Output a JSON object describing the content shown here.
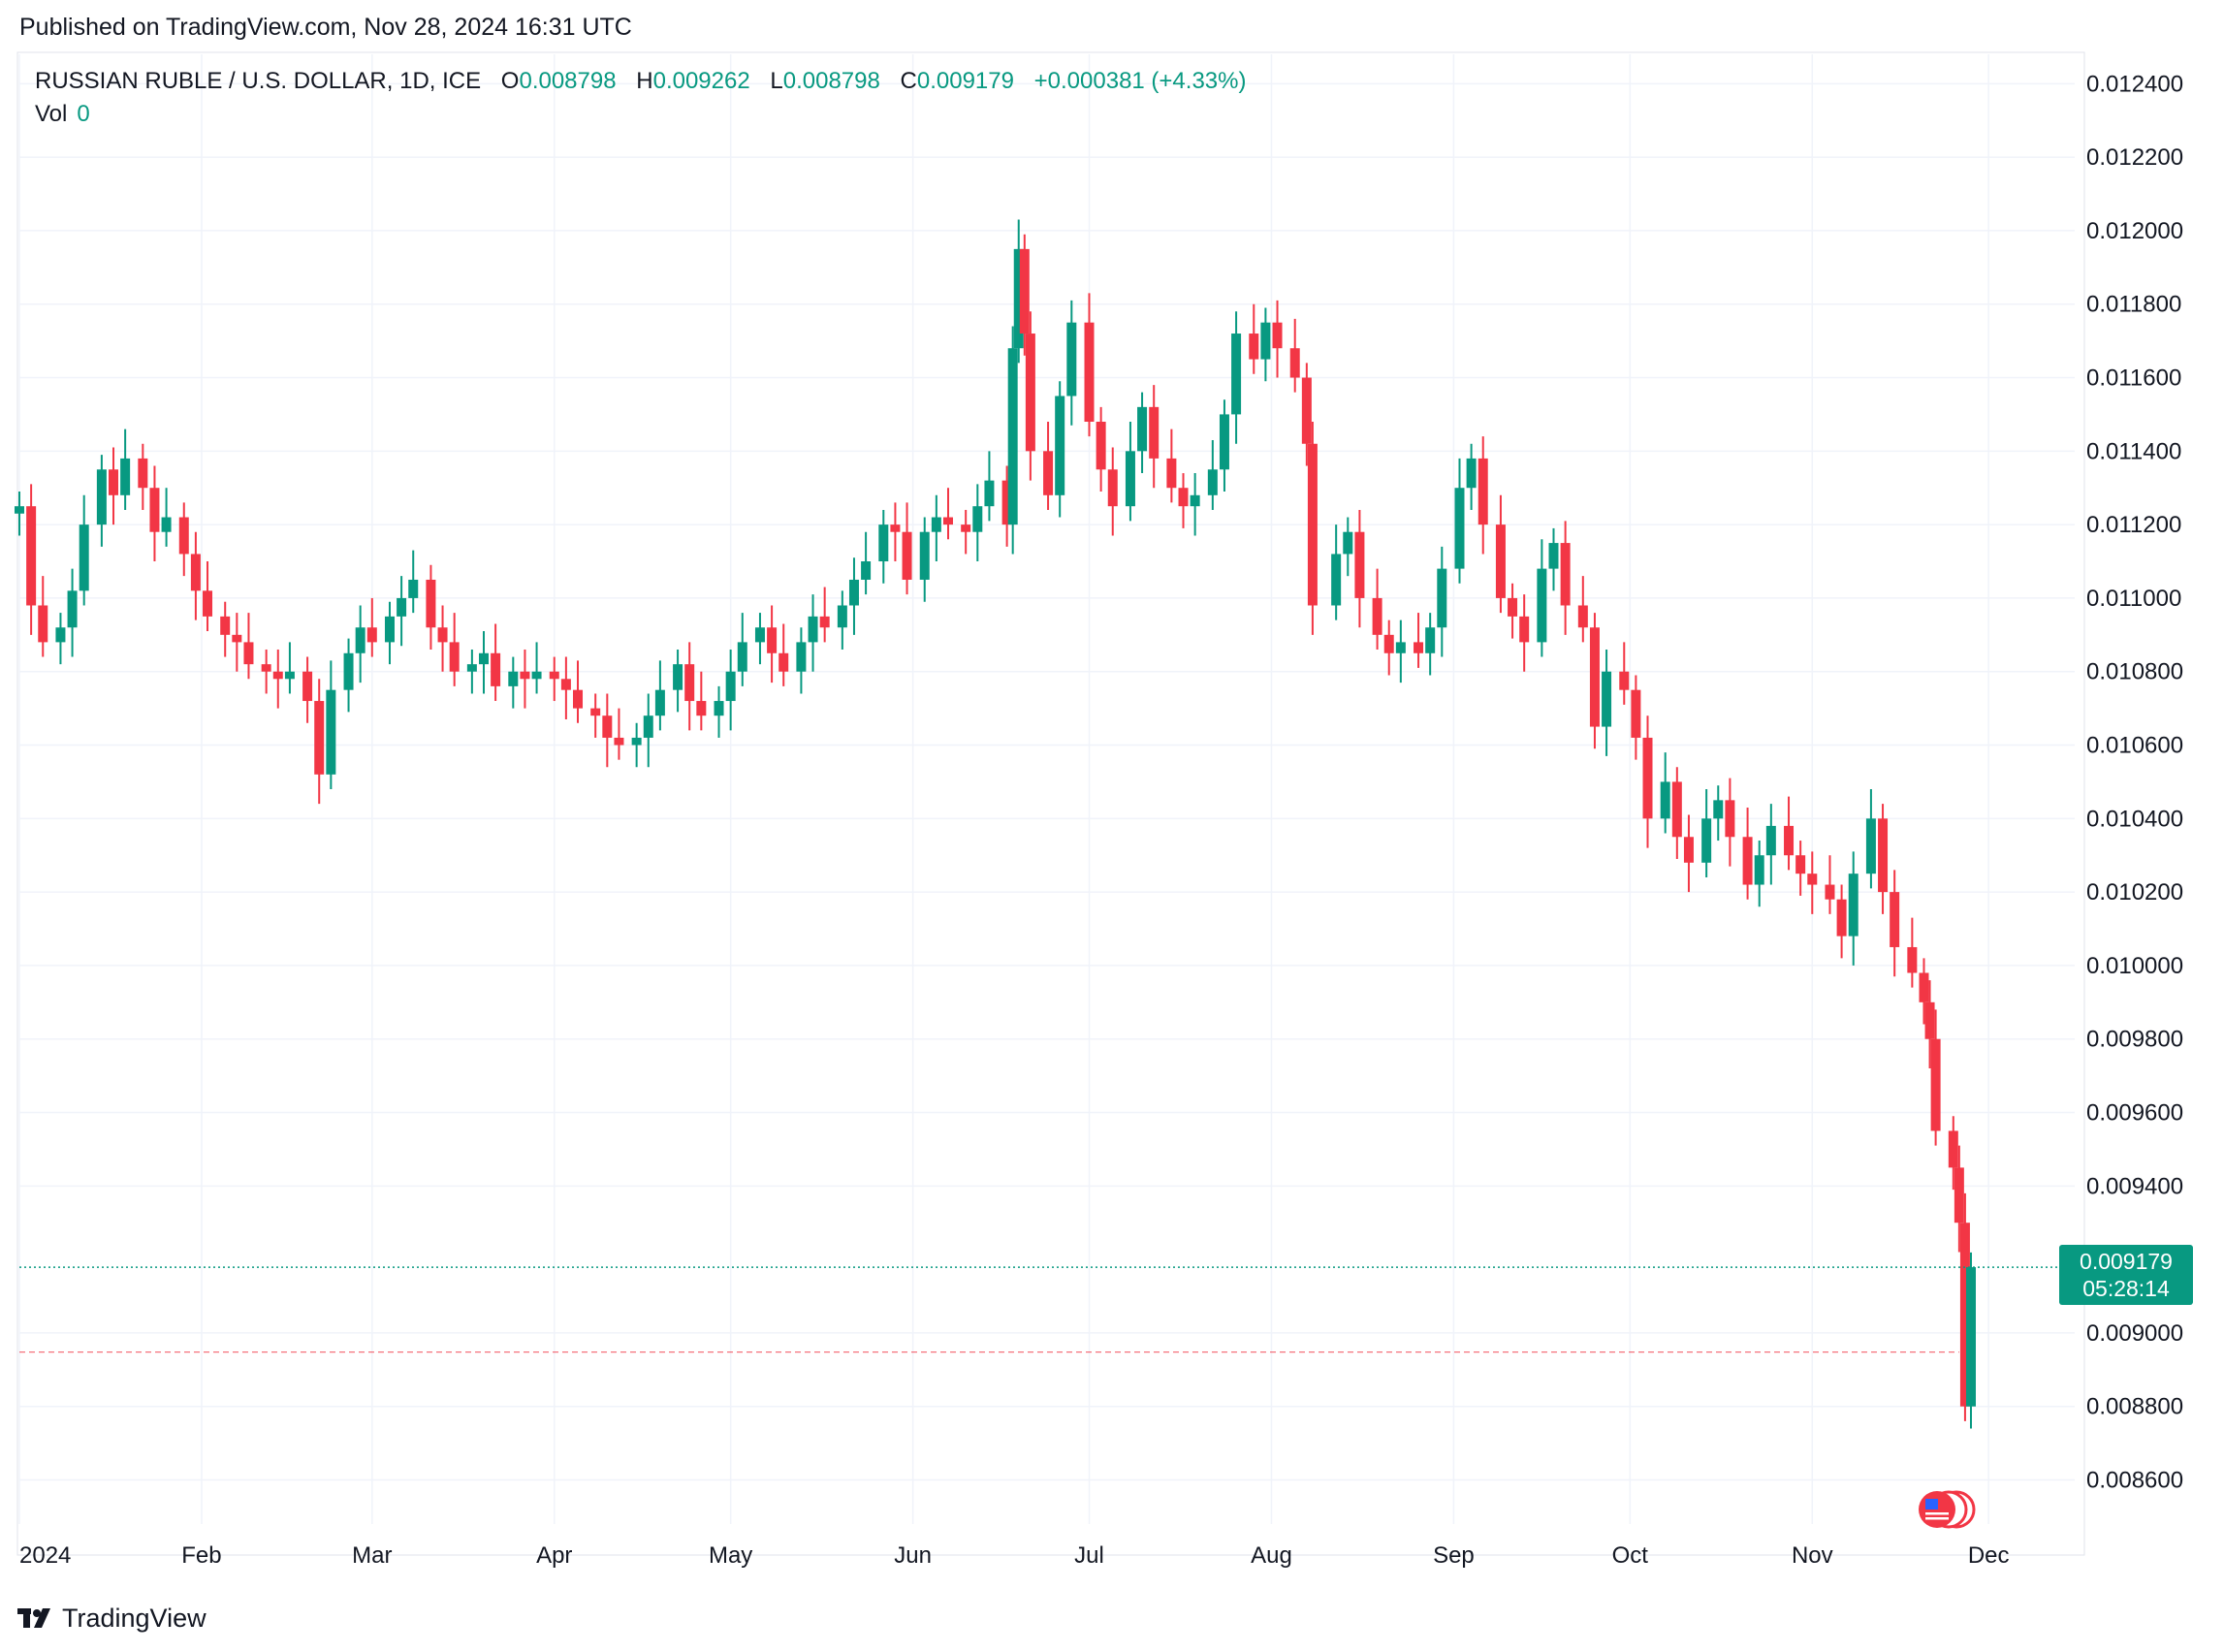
{
  "published": "Published on TradingView.com, Nov 28, 2024 16:31 UTC",
  "header": {
    "symbol": "RUSSIAN RUBLE / U.S. DOLLAR, 1D, ICE",
    "open_label": "O",
    "open": "0.008798",
    "high_label": "H",
    "high": "0.009262",
    "low_label": "L",
    "low": "0.008798",
    "close_label": "C",
    "close": "0.009179",
    "change": "+0.000381 (+4.33%)"
  },
  "volume": {
    "label": "Vol",
    "value": "0"
  },
  "last_price": {
    "price": "0.009179",
    "countdown": "05:28:14"
  },
  "footer": {
    "brand": "TradingView"
  },
  "colors": {
    "up": "#089981",
    "down": "#F23645",
    "grid": "#F0F3FA",
    "text": "#131722"
  },
  "chart_data": {
    "type": "candlestick",
    "title": "RUSSIAN RUBLE / U.S. DOLLAR, 1D, ICE",
    "y_ticks": [
      0.0124,
      0.0122,
      0.012,
      0.0118,
      0.0116,
      0.0114,
      0.0112,
      0.011,
      0.0108,
      0.0106,
      0.0104,
      0.0102,
      0.01,
      0.0098,
      0.0096,
      0.0094,
      0.009,
      0.0088,
      0.0086
    ],
    "y_tick_labels": [
      "0.012400",
      "0.012200",
      "0.012000",
      "0.011800",
      "0.011600",
      "0.011400",
      "0.011200",
      "0.011000",
      "0.010800",
      "0.010600",
      "0.010400",
      "0.010200",
      "0.010000",
      "0.009800",
      "0.009600",
      "0.009400",
      "0.009000",
      "0.008800",
      "0.008600"
    ],
    "ylim": [
      0.00848,
      0.01248
    ],
    "x_ticks": [
      "2024-01-01",
      "2024-02-01",
      "2024-03-01",
      "2024-04-01",
      "2024-05-01",
      "2024-06-01",
      "2024-07-01",
      "2024-08-01",
      "2024-09-01",
      "2024-10-01",
      "2024-11-01",
      "2024-12-01"
    ],
    "x_tick_labels": [
      "2024",
      "Feb",
      "Mar",
      "Apr",
      "May",
      "Jun",
      "Jul",
      "Aug",
      "Sep",
      "Oct",
      "Nov",
      "Dec"
    ],
    "xlim": [
      "2024-01-01",
      "2024-12-14"
    ],
    "last_price_line": 0.009179,
    "prev_close_line": 0.008948,
    "grid": true,
    "candles_close": [
      [
        "2024-01-01",
        0.01125
      ],
      [
        "2024-01-03",
        0.01098
      ],
      [
        "2024-01-05",
        0.01088
      ],
      [
        "2024-01-08",
        0.01092
      ],
      [
        "2024-01-10",
        0.01102
      ],
      [
        "2024-01-12",
        0.0112
      ],
      [
        "2024-01-15",
        0.01135
      ],
      [
        "2024-01-17",
        0.01128
      ],
      [
        "2024-01-19",
        0.01138
      ],
      [
        "2024-01-22",
        0.0113
      ],
      [
        "2024-01-24",
        0.01118
      ],
      [
        "2024-01-26",
        0.01122
      ],
      [
        "2024-01-29",
        0.01112
      ],
      [
        "2024-01-31",
        0.01102
      ],
      [
        "2024-02-02",
        0.01095
      ],
      [
        "2024-02-05",
        0.0109
      ],
      [
        "2024-02-07",
        0.01088
      ],
      [
        "2024-02-09",
        0.01082
      ],
      [
        "2024-02-12",
        0.0108
      ],
      [
        "2024-02-14",
        0.01078
      ],
      [
        "2024-02-16",
        0.0108
      ],
      [
        "2024-02-19",
        0.01072
      ],
      [
        "2024-02-21",
        0.01052
      ],
      [
        "2024-02-23",
        0.01075
      ],
      [
        "2024-02-26",
        0.01085
      ],
      [
        "2024-02-28",
        0.01092
      ],
      [
        "2024-03-01",
        0.01088
      ],
      [
        "2024-03-04",
        0.01095
      ],
      [
        "2024-03-06",
        0.011
      ],
      [
        "2024-03-08",
        0.01105
      ],
      [
        "2024-03-11",
        0.01092
      ],
      [
        "2024-03-13",
        0.01088
      ],
      [
        "2024-03-15",
        0.0108
      ],
      [
        "2024-03-18",
        0.01082
      ],
      [
        "2024-03-20",
        0.01085
      ],
      [
        "2024-03-22",
        0.01076
      ],
      [
        "2024-03-25",
        0.0108
      ],
      [
        "2024-03-27",
        0.01078
      ],
      [
        "2024-03-29",
        0.0108
      ],
      [
        "2024-04-01",
        0.01078
      ],
      [
        "2024-04-03",
        0.01075
      ],
      [
        "2024-04-05",
        0.0107
      ],
      [
        "2024-04-08",
        0.01068
      ],
      [
        "2024-04-10",
        0.01062
      ],
      [
        "2024-04-12",
        0.0106
      ],
      [
        "2024-04-15",
        0.01062
      ],
      [
        "2024-04-17",
        0.01068
      ],
      [
        "2024-04-19",
        0.01075
      ],
      [
        "2024-04-22",
        0.01082
      ],
      [
        "2024-04-24",
        0.01072
      ],
      [
        "2024-04-26",
        0.01068
      ],
      [
        "2024-04-29",
        0.01072
      ],
      [
        "2024-05-01",
        0.0108
      ],
      [
        "2024-05-03",
        0.01088
      ],
      [
        "2024-05-06",
        0.01092
      ],
      [
        "2024-05-08",
        0.01085
      ],
      [
        "2024-05-10",
        0.0108
      ],
      [
        "2024-05-13",
        0.01088
      ],
      [
        "2024-05-15",
        0.01095
      ],
      [
        "2024-05-17",
        0.01092
      ],
      [
        "2024-05-20",
        0.01098
      ],
      [
        "2024-05-22",
        0.01105
      ],
      [
        "2024-05-24",
        0.0111
      ],
      [
        "2024-05-27",
        0.0112
      ],
      [
        "2024-05-29",
        0.01118
      ],
      [
        "2024-05-31",
        0.01105
      ],
      [
        "2024-06-03",
        0.01118
      ],
      [
        "2024-06-05",
        0.01122
      ],
      [
        "2024-06-07",
        0.0112
      ],
      [
        "2024-06-10",
        0.01118
      ],
      [
        "2024-06-12",
        0.01125
      ],
      [
        "2024-06-14",
        0.01132
      ],
      [
        "2024-06-17",
        0.0112
      ],
      [
        "2024-06-18",
        0.01168
      ],
      [
        "2024-06-19",
        0.01195
      ],
      [
        "2024-06-20",
        0.01172
      ],
      [
        "2024-06-21",
        0.0114
      ],
      [
        "2024-06-24",
        0.01128
      ],
      [
        "2024-06-26",
        0.01155
      ],
      [
        "2024-06-28",
        0.01175
      ],
      [
        "2024-07-01",
        0.01148
      ],
      [
        "2024-07-03",
        0.01135
      ],
      [
        "2024-07-05",
        0.01125
      ],
      [
        "2024-07-08",
        0.0114
      ],
      [
        "2024-07-10",
        0.01152
      ],
      [
        "2024-07-12",
        0.01138
      ],
      [
        "2024-07-15",
        0.0113
      ],
      [
        "2024-07-17",
        0.01125
      ],
      [
        "2024-07-19",
        0.01128
      ],
      [
        "2024-07-22",
        0.01135
      ],
      [
        "2024-07-24",
        0.0115
      ],
      [
        "2024-07-26",
        0.01172
      ],
      [
        "2024-07-29",
        0.01165
      ],
      [
        "2024-07-31",
        0.01175
      ],
      [
        "2024-08-02",
        0.01168
      ],
      [
        "2024-08-05",
        0.0116
      ],
      [
        "2024-08-07",
        0.01142
      ],
      [
        "2024-08-08",
        0.01098
      ],
      [
        "2024-08-12",
        0.01112
      ],
      [
        "2024-08-14",
        0.01118
      ],
      [
        "2024-08-16",
        0.011
      ],
      [
        "2024-08-19",
        0.0109
      ],
      [
        "2024-08-21",
        0.01085
      ],
      [
        "2024-08-23",
        0.01088
      ],
      [
        "2024-08-26",
        0.01085
      ],
      [
        "2024-08-28",
        0.01092
      ],
      [
        "2024-08-30",
        0.01108
      ],
      [
        "2024-09-02",
        0.0113
      ],
      [
        "2024-09-04",
        0.01138
      ],
      [
        "2024-09-06",
        0.0112
      ],
      [
        "2024-09-09",
        0.011
      ],
      [
        "2024-09-11",
        0.01095
      ],
      [
        "2024-09-13",
        0.01088
      ],
      [
        "2024-09-16",
        0.01108
      ],
      [
        "2024-09-18",
        0.01115
      ],
      [
        "2024-09-20",
        0.01098
      ],
      [
        "2024-09-23",
        0.01092
      ],
      [
        "2024-09-25",
        0.01065
      ],
      [
        "2024-09-27",
        0.0108
      ],
      [
        "2024-09-30",
        0.01075
      ],
      [
        "2024-10-02",
        0.01062
      ],
      [
        "2024-10-04",
        0.0104
      ],
      [
        "2024-10-07",
        0.0105
      ],
      [
        "2024-10-09",
        0.01035
      ],
      [
        "2024-10-11",
        0.01028
      ],
      [
        "2024-10-14",
        0.0104
      ],
      [
        "2024-10-16",
        0.01045
      ],
      [
        "2024-10-18",
        0.01035
      ],
      [
        "2024-10-21",
        0.01022
      ],
      [
        "2024-10-23",
        0.0103
      ],
      [
        "2024-10-25",
        0.01038
      ],
      [
        "2024-10-28",
        0.0103
      ],
      [
        "2024-10-30",
        0.01025
      ],
      [
        "2024-11-01",
        0.01022
      ],
      [
        "2024-11-04",
        0.01018
      ],
      [
        "2024-11-06",
        0.01008
      ],
      [
        "2024-11-08",
        0.01025
      ],
      [
        "2024-11-11",
        0.0104
      ],
      [
        "2024-11-13",
        0.0102
      ],
      [
        "2024-11-15",
        0.01005
      ],
      [
        "2024-11-18",
        0.00998
      ],
      [
        "2024-11-20",
        0.0099
      ],
      [
        "2024-11-21",
        0.0098
      ],
      [
        "2024-11-22",
        0.00955
      ],
      [
        "2024-11-25",
        0.00945
      ],
      [
        "2024-11-26",
        0.0093
      ],
      [
        "2024-11-27",
        0.0088
      ],
      [
        "2024-11-28",
        0.009179
      ]
    ]
  }
}
